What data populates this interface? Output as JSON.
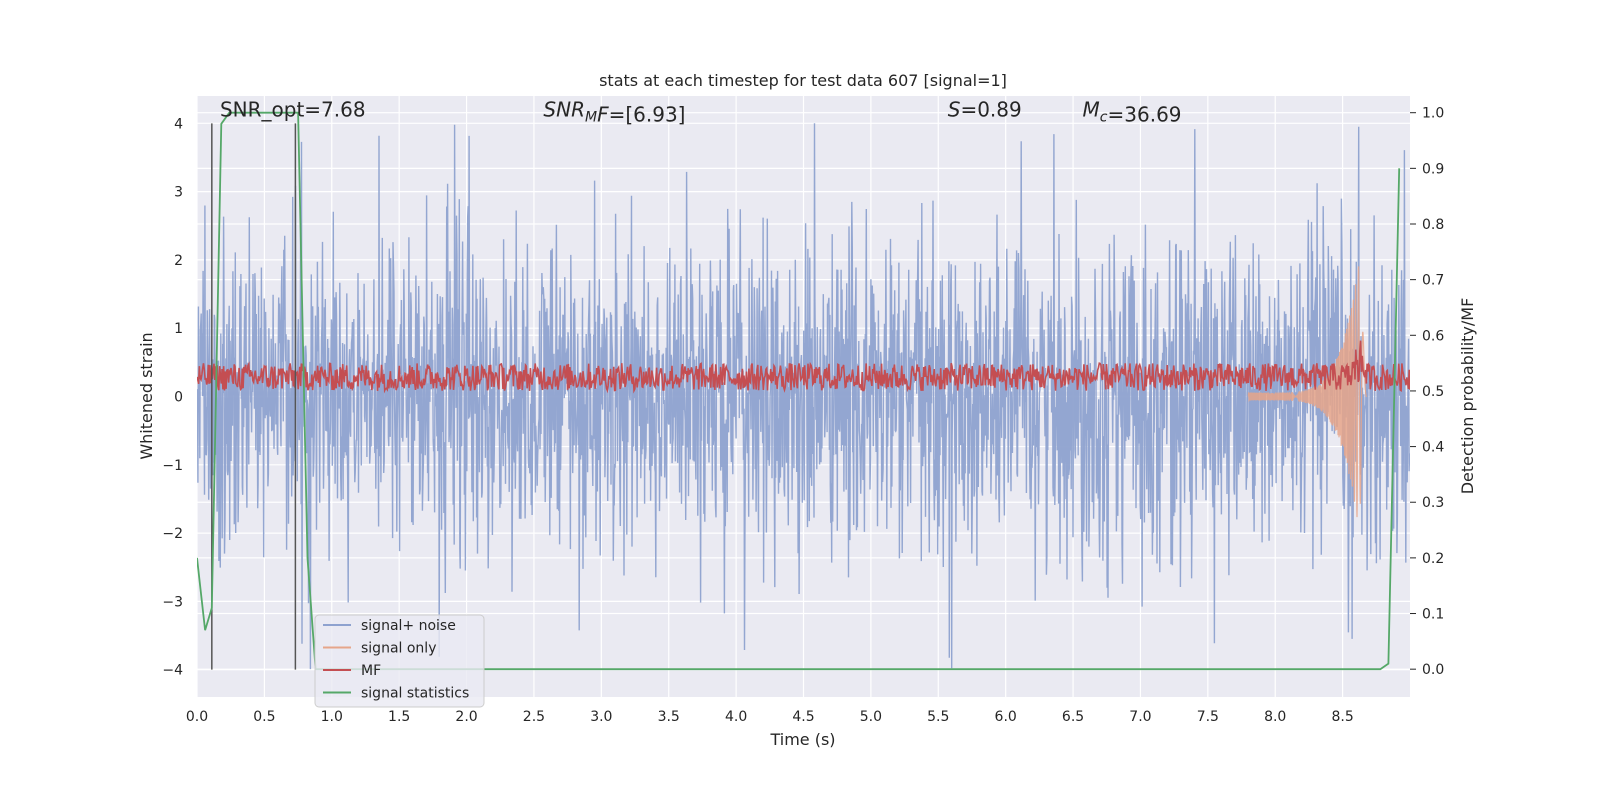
{
  "chart_data": {
    "type": "line",
    "title": "stats at each timestep for test data 607 [signal=1]",
    "xlabel": "Time (s)",
    "ylabel_left": "Whitened strain",
    "ylabel_right": "Detection probability/MF",
    "xlim": [
      0.0,
      9.0
    ],
    "ylim_left": [
      -4.4,
      4.4
    ],
    "ylim_right": [
      -0.05,
      1.03
    ],
    "xticks": [
      "0.0",
      "0.5",
      "1.0",
      "1.5",
      "2.0",
      "2.5",
      "3.0",
      "3.5",
      "4.0",
      "4.5",
      "5.0",
      "5.5",
      "6.0",
      "6.5",
      "7.0",
      "7.5",
      "8.0",
      "8.5"
    ],
    "xtick_values": [
      0.0,
      0.5,
      1.0,
      1.5,
      2.0,
      2.5,
      3.0,
      3.5,
      4.0,
      4.5,
      5.0,
      5.5,
      6.0,
      6.5,
      7.0,
      7.5,
      8.0,
      8.5
    ],
    "yticks_left": [
      "−4",
      "−3",
      "−2",
      "−1",
      "0",
      "1",
      "2",
      "3",
      "4"
    ],
    "ytick_values_left": [
      -4,
      -3,
      -2,
      -1,
      0,
      1,
      2,
      3,
      4
    ],
    "yticks_right": [
      "0.0",
      "0.1",
      "0.2",
      "0.3",
      "0.4",
      "0.5",
      "0.6",
      "0.7",
      "0.8",
      "0.9",
      "1.0"
    ],
    "ytick_values_right": [
      0.0,
      0.1,
      0.2,
      0.3,
      0.4,
      0.5,
      0.6,
      0.7,
      0.8,
      0.9,
      1.0
    ],
    "grid": true,
    "annotations": [
      {
        "id": "snr-opt",
        "x": 0.2,
        "y": 4.1,
        "parts": [
          {
            "t": "SNR_opt=7.68",
            "italic": false
          }
        ]
      },
      {
        "id": "snr-mf",
        "x": 2.6,
        "y": 4.1,
        "parts": [
          {
            "t": "SNR",
            "italic": true
          },
          {
            "t": "M",
            "italic": true,
            "sub": true
          },
          {
            "t": "F",
            "italic": true
          },
          {
            "t": "=[6.93]",
            "italic": false
          }
        ]
      },
      {
        "id": "overlap",
        "x": 5.6,
        "y": 4.1,
        "parts": [
          {
            "t": "S",
            "italic": true
          },
          {
            "t": "=0.89",
            "italic": false
          }
        ]
      },
      {
        "id": "chirp-mass",
        "x": 6.6,
        "y": 4.1,
        "parts": [
          {
            "t": "M",
            "italic": true
          },
          {
            "t": "c",
            "italic": true,
            "sub": true
          },
          {
            "t": "=36.69",
            "italic": false
          }
        ]
      }
    ],
    "legend": {
      "placement": "lower-left",
      "entries": [
        {
          "label": "signal+ noise",
          "color": "#8ea2cf"
        },
        {
          "label": "signal only",
          "color": "#e6a58a"
        },
        {
          "label": "MF",
          "color": "#c44e52"
        },
        {
          "label": "signal statistics",
          "color": "#55a868"
        }
      ]
    },
    "series": [
      {
        "name": "signal+ noise",
        "kind": "noise",
        "axis": "left",
        "color": "#8ea2cf",
        "amplitude_envelope": {
          "x": [
            0.0,
            9.0
          ],
          "max": [
            4.0,
            4.0
          ],
          "min": [
            -4.0,
            -4.0
          ]
        },
        "notable_peaks": [
          {
            "x": 1.91,
            "y": 3.98
          },
          {
            "x": 5.6,
            "y": -3.98
          },
          {
            "x": 8.62,
            "y": 3.95
          },
          {
            "x": 8.57,
            "y": -3.55
          }
        ]
      },
      {
        "name": "signal only",
        "kind": "chirp",
        "axis": "left",
        "color": "#e6a58a",
        "chirp": {
          "start_x": 7.8,
          "peak_x": 8.62,
          "end_x": 8.68,
          "peak_amplitude": 1.95
        }
      },
      {
        "name": "MF",
        "kind": "band",
        "axis": "right",
        "color": "#c44e52",
        "band": {
          "low": 0.5,
          "high": 0.55,
          "peak_x": 8.62,
          "peak_y": 0.63
        }
      },
      {
        "name": "signal statistics",
        "axis": "right",
        "color": "#55a868",
        "x": [
          0.0,
          0.06,
          0.11,
          0.18,
          0.24,
          0.75,
          0.82,
          0.88,
          8.78,
          8.84,
          8.92
        ],
        "y": [
          0.2,
          0.07,
          0.11,
          0.98,
          1.0,
          1.0,
          0.2,
          0.0,
          0.0,
          0.01,
          0.9
        ]
      }
    ],
    "vlines": [
      {
        "x": 0.11,
        "y_from": -4.0,
        "y_to": 4.0,
        "color": "#555555"
      },
      {
        "x": 0.73,
        "y_from": -4.0,
        "y_to": 4.0,
        "color": "#555555"
      }
    ]
  }
}
